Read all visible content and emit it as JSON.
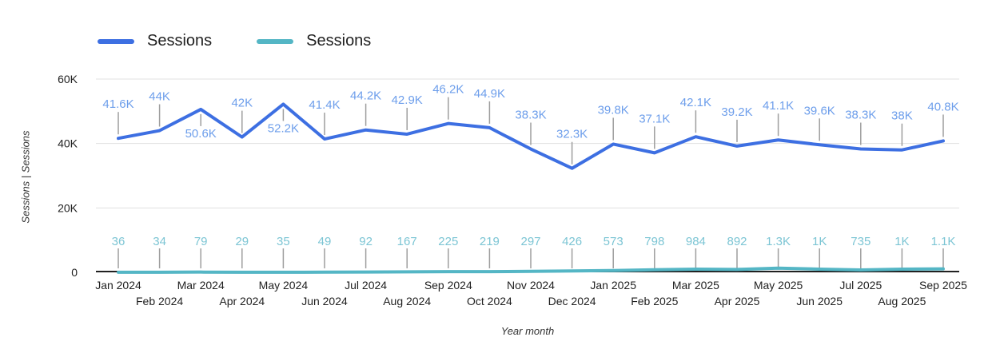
{
  "legend": {
    "items": [
      {
        "label": "Sessions",
        "color": "#3d6fe2"
      },
      {
        "label": "Sessions",
        "color": "#54b6c5"
      }
    ]
  },
  "chart_data": {
    "type": "line",
    "title": "",
    "xlabel": "Year month",
    "ylabel": "Sessions | Sessions",
    "ylim": [
      0,
      60000
    ],
    "grid": true,
    "legend_position": "top-left",
    "x": [
      "Jan 2024",
      "Feb 2024",
      "Mar 2024",
      "Apr 2024",
      "May 2024",
      "Jun 2024",
      "Jul 2024",
      "Aug 2024",
      "Sep 2024",
      "Oct 2024",
      "Nov 2024",
      "Dec 2024",
      "Jan 2025",
      "Feb 2025",
      "Mar 2025",
      "Apr 2025",
      "May 2025",
      "Jun 2025",
      "Jul 2025",
      "Aug 2025",
      "Sep 2025"
    ],
    "yticks": [
      {
        "value": 0,
        "label": "0"
      },
      {
        "value": 20000,
        "label": "20K"
      },
      {
        "value": 40000,
        "label": "40K"
      },
      {
        "value": 60000,
        "label": "60K"
      }
    ],
    "series": [
      {
        "name": "Sessions",
        "color": "#3d6fe2",
        "label_color": "#6d9eeb",
        "values": [
          41600,
          44000,
          50600,
          42000,
          52200,
          41400,
          44200,
          42900,
          46200,
          44900,
          38300,
          32300,
          39800,
          37100,
          42100,
          39200,
          41100,
          39600,
          38300,
          38000,
          40800
        ],
        "labels": [
          "41.6K",
          "44K",
          "50.6K",
          "42K",
          "52.2K",
          "41.4K",
          "44.2K",
          "42.9K",
          "46.2K",
          "44.9K",
          "38.3K",
          "32.3K",
          "39.8K",
          "37.1K",
          "42.1K",
          "39.2K",
          "41.1K",
          "39.6K",
          "38.3K",
          "38K",
          "40.8K"
        ]
      },
      {
        "name": "Sessions",
        "color": "#54b6c5",
        "label_color": "#7cc5d4",
        "values": [
          36,
          34,
          79,
          29,
          35,
          49,
          92,
          167,
          225,
          219,
          297,
          426,
          573,
          798,
          984,
          892,
          1300,
          1000,
          735,
          1000,
          1100
        ],
        "labels": [
          "36",
          "34",
          "79",
          "29",
          "35",
          "49",
          "92",
          "167",
          "225",
          "219",
          "297",
          "426",
          "573",
          "798",
          "984",
          "892",
          "1.3K",
          "1K",
          "735",
          "1K",
          "1.1K"
        ]
      }
    ]
  },
  "colors": {
    "gridline": "#e0e0e0",
    "axis_line": "#212121",
    "leader_line": "#9e9e9e",
    "tick_text": "#1f1f1f"
  }
}
